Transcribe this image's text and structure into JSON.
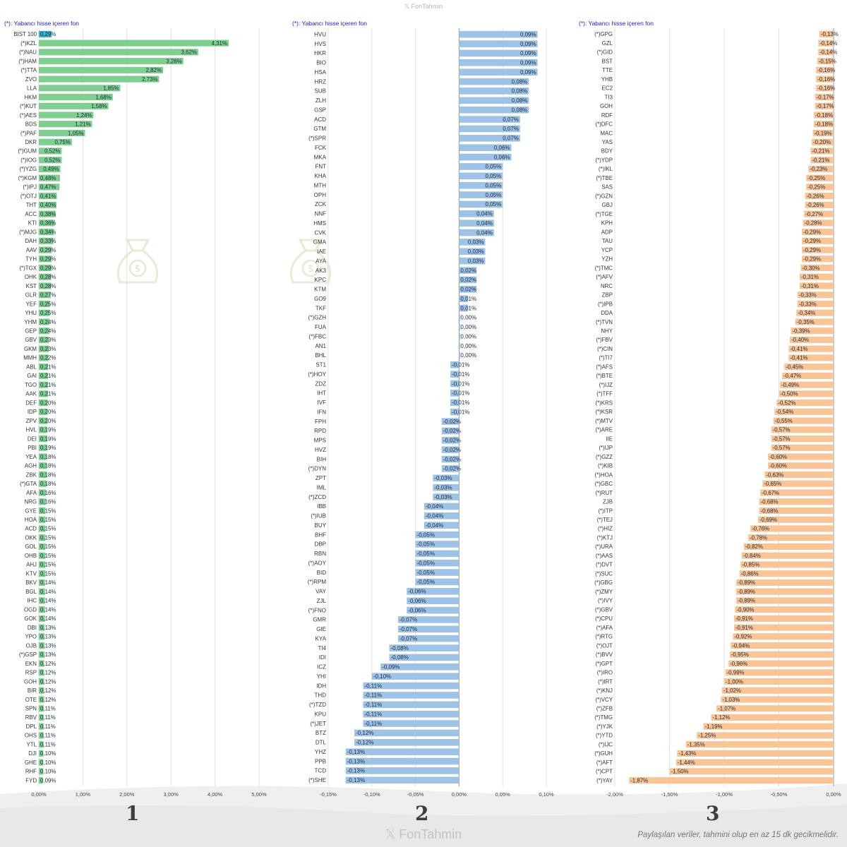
{
  "brand_top": "𝕏 FonTahmin",
  "brand_bottom": "𝕏 FonTahmin",
  "footer_note": "Paylaşılan veriler, tahmini olup en az 15 dk gecikmelidir.",
  "charts": [
    {
      "note": "(*): Yabancı hisse içeren fon",
      "number": "1",
      "color": "#7fcf91",
      "highlight_color": "#3ab0c9",
      "xlim": [
        -0.0075,
        0.055
      ],
      "ticks": [
        "0,00%",
        "1,00%",
        "2,00%",
        "3,00%",
        "4,00%",
        "5,00%"
      ],
      "tick_values": [
        0,
        0.01,
        0.02,
        0.03,
        0.04,
        0.05
      ]
    },
    {
      "note": "(*): Yabancı hisse içeren fon",
      "number": "2",
      "color": "#9fc3e7",
      "xlim": [
        -0.0015,
        0.001
      ],
      "ticks": [
        "-0,15%",
        "-0,10%",
        "-0,05%",
        "0,00%",
        "0,05%",
        "0,10%"
      ],
      "tick_values": [
        -0.0015,
        -0.001,
        -0.0005,
        0,
        0.0005,
        0.001
      ]
    },
    {
      "note": "(*): Yabancı hisse içeren fon",
      "number": "3",
      "color": "#f9c596",
      "xlim": [
        -0.02,
        0.0
      ],
      "ticks": [
        "-2,00%",
        "-1,50%",
        "-1,00%",
        "-0,50%",
        "0,00%"
      ],
      "tick_values": [
        -0.02,
        -0.015,
        -0.01,
        -0.005,
        0
      ]
    }
  ],
  "chart_data": [
    {
      "type": "bar",
      "orientation": "horizontal",
      "categories": [
        "BIST 100",
        "(*)KZL",
        "(*)NAU",
        "(*)HAM",
        "(*)TTA",
        "ZVO",
        "LLA",
        "HKM",
        "(*)KUT",
        "(*)AES",
        "BDS",
        "(*)PAF",
        "DKR",
        "(*)GUM",
        "(*)IOG",
        "(*)YZG",
        "(*)KGM",
        "(*)IPJ",
        "(*)OTJ",
        "THT",
        "ACC",
        "KTI",
        "(*)MJG",
        "DAH",
        "AAV",
        "TYH",
        "(*)TGX",
        "OHK",
        "KST",
        "GLR",
        "YEF",
        "YHU",
        "YHM",
        "GEP",
        "GBV",
        "GKM",
        "MMH",
        "ABL",
        "GAI",
        "TGO",
        "AAK",
        "DEF",
        "IDP",
        "ZPV",
        "HVL",
        "DEI",
        "PBI",
        "YEA",
        "AGH",
        "ZBK",
        "(*)GTA",
        "AFA",
        "NRG",
        "GYE",
        "HOA",
        "ACD",
        "OKK",
        "GOL",
        "OHB",
        "AHJ",
        "KTV",
        "BKV",
        "BGL",
        "IHC",
        "OGD",
        "GOK",
        "DBI",
        "YPO",
        "OJB",
        "(*)GSP",
        "EKN",
        "RSP",
        "GOH",
        "BIR",
        "OTE",
        "SPN",
        "RBV",
        "DPL",
        "OHS",
        "YTL",
        "DJI",
        "GHE",
        "RHF",
        "FYD"
      ],
      "values": [
        0.0029,
        0.0431,
        0.0362,
        0.0328,
        0.0282,
        0.0273,
        0.0185,
        0.0168,
        0.0158,
        0.0124,
        0.0121,
        0.0105,
        0.0075,
        0.0052,
        0.0052,
        0.0049,
        0.0048,
        0.0047,
        0.0041,
        0.004,
        0.0038,
        0.0036,
        0.0034,
        0.0033,
        0.0029,
        0.0029,
        0.0029,
        0.0028,
        0.0028,
        0.0027,
        0.0025,
        0.0025,
        0.0024,
        0.0024,
        0.0023,
        0.0023,
        0.0022,
        0.0021,
        0.0021,
        0.0021,
        0.0021,
        0.002,
        0.002,
        0.002,
        0.0019,
        0.0019,
        0.0019,
        0.0018,
        0.0018,
        0.0018,
        0.0018,
        0.0016,
        0.0016,
        0.0015,
        0.0015,
        0.0015,
        0.0015,
        0.0015,
        0.0015,
        0.0015,
        0.0015,
        0.0014,
        0.0014,
        0.0014,
        0.0014,
        0.0014,
        0.0013,
        0.0013,
        0.0013,
        0.0013,
        0.0012,
        0.0012,
        0.0012,
        0.0012,
        0.0012,
        0.0011,
        0.0011,
        0.0011,
        0.0011,
        0.0011,
        0.001,
        0.001,
        0.001,
        0.0009
      ],
      "labels": [
        "0,29%",
        "4,31%",
        "3,62%",
        "3,28%",
        "2,82%",
        "2,73%",
        "1,85%",
        "1,68%",
        "1,58%",
        "1,24%",
        "1,21%",
        "1,05%",
        "0,75%",
        "0,52%",
        "0,52%",
        "0,49%",
        "0,48%",
        "0,47%",
        "0,41%",
        "0,40%",
        "0,38%",
        "0,36%",
        "0,34%",
        "0,33%",
        "0,29%",
        "0,29%",
        "0,29%",
        "0,28%",
        "0,28%",
        "0,27%",
        "0,25%",
        "0,25%",
        "0,24%",
        "0,24%",
        "0,23%",
        "0,23%",
        "0,22%",
        "0,21%",
        "0,21%",
        "0,21%",
        "0,21%",
        "0,20%",
        "0,20%",
        "0,20%",
        "0,19%",
        "0,19%",
        "0,19%",
        "0,18%",
        "0,18%",
        "0,18%",
        "0,18%",
        "0,16%",
        "0,16%",
        "0,15%",
        "0,15%",
        "0,15%",
        "0,15%",
        "0,15%",
        "0,15%",
        "0,15%",
        "0,15%",
        "0,14%",
        "0,14%",
        "0,14%",
        "0,14%",
        "0,14%",
        "0,13%",
        "0,13%",
        "0,13%",
        "0,13%",
        "0,12%",
        "0,12%",
        "0,12%",
        "0,12%",
        "0,12%",
        "0,11%",
        "0,11%",
        "0,11%",
        "0,11%",
        "0,11%",
        "0,10%",
        "0,10%",
        "0,10%",
        "0,09%"
      ],
      "xlabel": "",
      "ylabel": "",
      "xlim": [
        0,
        0.05
      ]
    },
    {
      "type": "bar",
      "orientation": "horizontal",
      "categories": [
        "HVU",
        "HVS",
        "HKR",
        "BIO",
        "HSA",
        "HRZ",
        "SUB",
        "ZLH",
        "GSP",
        "ACD",
        "GTM",
        "(*)SPR",
        "FCK",
        "MKA",
        "FNT",
        "KHA",
        "MTH",
        "OPH",
        "ZCK",
        "NNF",
        "HMS",
        "CVK",
        "GMA",
        "IAE",
        "AYA",
        "AK3",
        "KPC",
        "KTM",
        "GO9",
        "TKF",
        "(*)GZH",
        "FUA",
        "(*)FBC",
        "AN1",
        "BHL",
        "ST1",
        "(*)HOY",
        "ZDZ",
        "IHT",
        "IVF",
        "IFN",
        "FPH",
        "RPD",
        "MPS",
        "HVZ",
        "BIH",
        "(*)DYN",
        "ZPT",
        "IML",
        "(*)ZCD",
        "IBB",
        "(*)IUB",
        "BUY",
        "BHF",
        "DBP",
        "RBN",
        "(*)AOY",
        "BID",
        "(*)RPM",
        "VAY",
        "ZJL",
        "(*)FNO",
        "GMR",
        "GIE",
        "KYA",
        "TI4",
        "IDI",
        "ICZ",
        "YHI",
        "IDH",
        "THD",
        "(*)TZD",
        "KPU",
        "(*)JET",
        "BTZ",
        "DTL",
        "YHZ",
        "PPB",
        "TCD",
        "(*)SHE"
      ],
      "values": [
        0.0009,
        0.0009,
        0.0009,
        0.0009,
        0.0009,
        0.0008,
        0.0008,
        0.0008,
        0.0008,
        0.0007,
        0.0007,
        0.0007,
        0.0006,
        0.0006,
        0.0005,
        0.0005,
        0.0005,
        0.0005,
        0.0005,
        0.0004,
        0.0004,
        0.0004,
        0.0003,
        0.0003,
        0.0003,
        0.0002,
        0.0002,
        0.0002,
        0.0001,
        0.0001,
        0.0,
        0.0,
        0.0,
        0.0,
        0.0,
        -0.0001,
        -0.0001,
        -0.0001,
        -0.0001,
        -0.0001,
        -0.0001,
        -0.0002,
        -0.0002,
        -0.0002,
        -0.0002,
        -0.0002,
        -0.0002,
        -0.0003,
        -0.0003,
        -0.0003,
        -0.0004,
        -0.0004,
        -0.0004,
        -0.0005,
        -0.0005,
        -0.0005,
        -0.0005,
        -0.0005,
        -0.0005,
        -0.0006,
        -0.0006,
        -0.0006,
        -0.0007,
        -0.0007,
        -0.0007,
        -0.0008,
        -0.0008,
        -0.0009,
        -0.001,
        -0.0011,
        -0.0011,
        -0.0011,
        -0.0011,
        -0.0011,
        -0.0012,
        -0.0012,
        -0.0013,
        -0.0013,
        -0.0013,
        -0.0013
      ],
      "labels": [
        "0,09%",
        "0,09%",
        "0,09%",
        "0,09%",
        "0,09%",
        "0,08%",
        "0,08%",
        "0,08%",
        "0,08%",
        "0,07%",
        "0,07%",
        "0,07%",
        "0,06%",
        "0,06%",
        "0,05%",
        "0,05%",
        "0,05%",
        "0,05%",
        "0,05%",
        "0,04%",
        "0,04%",
        "0,04%",
        "0,03%",
        "0,03%",
        "0,03%",
        "0,02%",
        "0,02%",
        "0,02%",
        "0,01%",
        "0,01%",
        "0,00%",
        "0,00%",
        "0,00%",
        "0,00%",
        "0,00%",
        "-0,01%",
        "-0,01%",
        "-0,01%",
        "-0,01%",
        "-0,01%",
        "-0,01%",
        "-0,02%",
        "-0,02%",
        "-0,02%",
        "-0,02%",
        "-0,02%",
        "-0,02%",
        "-0,03%",
        "-0,03%",
        "-0,03%",
        "-0,04%",
        "-0,04%",
        "-0,04%",
        "-0,05%",
        "-0,05%",
        "-0,05%",
        "-0,05%",
        "-0,05%",
        "-0,05%",
        "-0,06%",
        "-0,06%",
        "-0,06%",
        "-0,07%",
        "-0,07%",
        "-0,07%",
        "-0,08%",
        "-0,08%",
        "-0,09%",
        "-0,10%",
        "-0,11%",
        "-0,11%",
        "-0,11%",
        "-0,11%",
        "-0,11%",
        "-0,12%",
        "-0,12%",
        "-0,13%",
        "-0,13%",
        "-0,13%",
        "-0,13%"
      ],
      "xlabel": "",
      "ylabel": "",
      "xlim": [
        -0.0015,
        0.001
      ]
    },
    {
      "type": "bar",
      "orientation": "horizontal",
      "categories": [
        "(*)GPG",
        "GZL",
        "(*)GID",
        "BST",
        "TTE",
        "YHB",
        "EC2",
        "TI3",
        "GOH",
        "RDF",
        "(*)DFC",
        "MAC",
        "YAS",
        "BDY",
        "(*)YDP",
        "(*)IKL",
        "(*)TBE",
        "SAS",
        "(*)GZN",
        "GBJ",
        "(*)TGE",
        "KPH",
        "ADP",
        "TAU",
        "YCP",
        "YZH",
        "(*)TMC",
        "(*)AFV",
        "NRC",
        "ZBP",
        "(*)IPB",
        "DDA",
        "(*)TVN",
        "NHY",
        "(*)FBV",
        "(*)CIN",
        "(*)TI7",
        "(*)AFS",
        "(*)BTE",
        "(*)IJZ",
        "(*)TFF",
        "(*)KRS",
        "(*)KSR",
        "(*)MTV",
        "(*)ARE",
        "IIE",
        "(*)IJP",
        "(*)GZZ",
        "(*)KIB",
        "(*)HOA",
        "(*)GBC",
        "(*)RUT",
        "ZJB",
        "(*)ITP",
        "(*)TEJ",
        "(*)HIZ",
        "(*)KTJ",
        "(*)URA",
        "(*)AAS",
        "(*)DVT",
        "(*)SUC",
        "(*)GBG",
        "(*)ZMY",
        "(*)IVY",
        "(*)GBV",
        "(*)CPU",
        "(*)AFA",
        "(*)RTG",
        "(*)OJT",
        "(*)BVV",
        "(*)GPT",
        "(*)IRO",
        "(*)IRT",
        "(*)KNJ",
        "(*)VCY",
        "(*)ZFB",
        "(*)TMG",
        "(*)YJK",
        "(*)YTD",
        "(*)IJC",
        "(*)GUH",
        "(*)AFT",
        "(*)CPT",
        "(*)YAY"
      ],
      "values": [
        -0.0013,
        -0.0014,
        -0.0014,
        -0.0015,
        -0.0016,
        -0.0016,
        -0.0016,
        -0.0017,
        -0.0017,
        -0.0018,
        -0.0018,
        -0.0019,
        -0.002,
        -0.0021,
        -0.0021,
        -0.0023,
        -0.0025,
        -0.0025,
        -0.0026,
        -0.0026,
        -0.0027,
        -0.0028,
        -0.0029,
        -0.0029,
        -0.0029,
        -0.0029,
        -0.003,
        -0.0031,
        -0.0031,
        -0.0033,
        -0.0033,
        -0.0034,
        -0.0035,
        -0.0039,
        -0.004,
        -0.0041,
        -0.0041,
        -0.0045,
        -0.0047,
        -0.0049,
        -0.005,
        -0.0052,
        -0.0054,
        -0.0055,
        -0.0057,
        -0.0057,
        -0.0057,
        -0.006,
        -0.006,
        -0.0063,
        -0.0065,
        -0.0067,
        -0.0068,
        -0.0068,
        -0.0069,
        -0.0076,
        -0.0078,
        -0.0082,
        -0.0084,
        -0.0085,
        -0.0086,
        -0.0089,
        -0.0089,
        -0.0089,
        -0.009,
        -0.0091,
        -0.0091,
        -0.0092,
        -0.0094,
        -0.0095,
        -0.0096,
        -0.0099,
        -0.01,
        -0.0102,
        -0.0103,
        -0.0107,
        -0.0112,
        -0.0119,
        -0.0125,
        -0.0135,
        -0.0143,
        -0.0144,
        -0.015,
        -0.0187
      ],
      "labels": [
        "-0,13%",
        "-0,14%",
        "-0,14%",
        "-0,15%",
        "-0,16%",
        "-0,16%",
        "-0,16%",
        "-0,17%",
        "-0,17%",
        "-0,18%",
        "-0,18%",
        "-0,19%",
        "-0,20%",
        "-0,21%",
        "-0,21%",
        "-0,23%",
        "-0,25%",
        "-0,25%",
        "-0,26%",
        "-0,26%",
        "-0,27%",
        "-0,28%",
        "-0,29%",
        "-0,29%",
        "-0,29%",
        "-0,29%",
        "-0,30%",
        "-0,31%",
        "-0,31%",
        "-0,33%",
        "-0,33%",
        "-0,34%",
        "-0,35%",
        "-0,39%",
        "-0,40%",
        "-0,41%",
        "-0,41%",
        "-0,45%",
        "-0,47%",
        "-0,49%",
        "-0,50%",
        "-0,52%",
        "-0,54%",
        "-0,55%",
        "-0,57%",
        "-0,57%",
        "-0,57%",
        "-0,60%",
        "-0,60%",
        "-0,63%",
        "-0,65%",
        "-0,67%",
        "-0,68%",
        "-0,68%",
        "-0,69%",
        "-0,76%",
        "-0,78%",
        "-0,82%",
        "-0,84%",
        "-0,85%",
        "-0,86%",
        "-0,89%",
        "-0,89%",
        "-0,89%",
        "-0,90%",
        "-0,91%",
        "-0,91%",
        "-0,92%",
        "-0,94%",
        "-0,95%",
        "-0,96%",
        "-0,99%",
        "-1,00%",
        "-1,02%",
        "-1,03%",
        "-1,07%",
        "-1,12%",
        "-1,19%",
        "-1,25%",
        "-1,35%",
        "-1,43%",
        "-1,44%",
        "-1,50%",
        "-1,87%"
      ],
      "xlabel": "",
      "ylabel": "",
      "xlim": [
        -0.02,
        0.0
      ]
    }
  ]
}
